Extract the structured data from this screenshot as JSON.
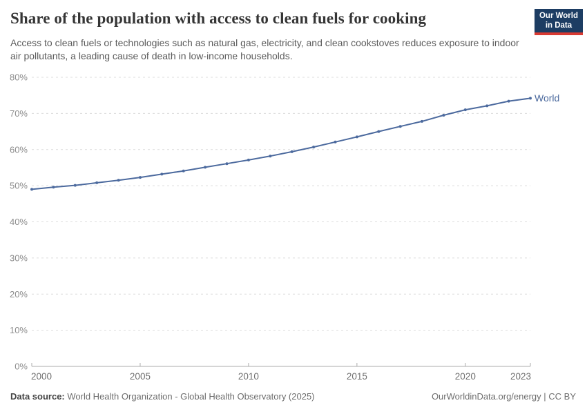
{
  "header": {
    "title": "Share of the population with access to clean fuels for cooking",
    "subtitle": "Access to clean fuels or technologies such as natural gas, electricity, and clean cookstoves reduces exposure to indoor air pollutants, a leading cause of death in low-income households.",
    "logo": {
      "line1": "Our World",
      "line2": "in Data",
      "bg_color": "#1d3d63",
      "accent_color": "#d93a32"
    }
  },
  "chart_data": {
    "type": "line",
    "title": "Share of the population with access to clean fuels for cooking",
    "x": [
      2000,
      2001,
      2002,
      2003,
      2004,
      2005,
      2006,
      2007,
      2008,
      2009,
      2010,
      2011,
      2012,
      2013,
      2014,
      2015,
      2016,
      2017,
      2018,
      2019,
      2020,
      2021,
      2022,
      2023
    ],
    "series": [
      {
        "name": "World",
        "color": "#4c6a9e",
        "values": [
          49.0,
          49.6,
          50.1,
          50.8,
          51.5,
          52.3,
          53.2,
          54.1,
          55.1,
          56.1,
          57.1,
          58.2,
          59.4,
          60.7,
          62.1,
          63.5,
          65.0,
          66.4,
          67.8,
          69.5,
          71.0,
          72.1,
          73.4,
          74.2
        ]
      }
    ],
    "x_ticks": [
      2000,
      2005,
      2010,
      2015,
      2020,
      2023
    ],
    "y_ticks": [
      0,
      10,
      20,
      30,
      40,
      50,
      60,
      70,
      80
    ],
    "y_tick_suffix": "%",
    "xlim": [
      2000,
      2023
    ],
    "ylim": [
      0,
      80
    ],
    "grid": "horizontal-dashed",
    "legend_position": "end-of-line",
    "xlabel": "",
    "ylabel": ""
  },
  "footer": {
    "source_label": "Data source:",
    "source_text": " World Health Organization - Global Health Observatory (2025)",
    "credit": "OurWorldinData.org/energy | CC BY"
  }
}
